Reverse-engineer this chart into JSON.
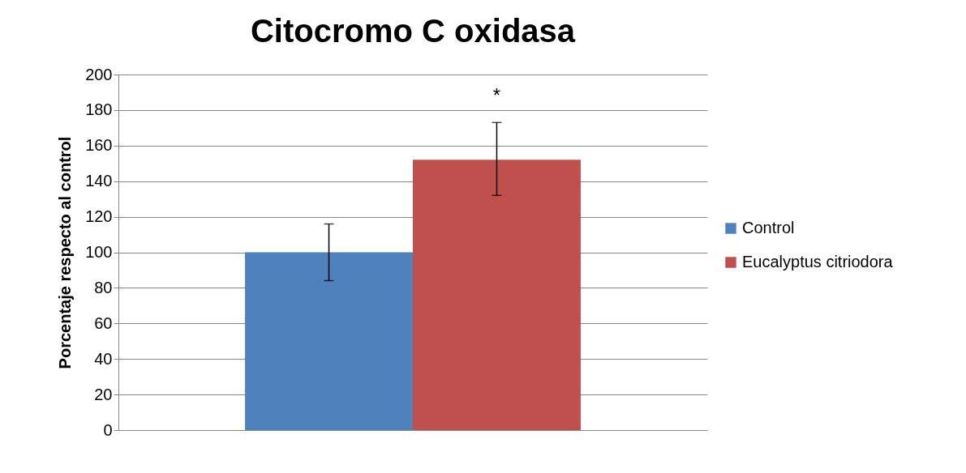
{
  "chart_data": {
    "type": "bar",
    "title": "Citocromo C oxidasa",
    "ylabel": "Porcentaje respecto al control",
    "categories": [
      null
    ],
    "series": [
      {
        "name": "Control",
        "color": "#4f81bd",
        "values": [
          100
        ],
        "errors": [
          [
            84,
            116
          ]
        ]
      },
      {
        "name": "Eucalyptus citriodora",
        "color": "#c0504d",
        "values": [
          152
        ],
        "errors": [
          [
            132,
            173
          ]
        ]
      }
    ],
    "ylim": [
      0,
      200
    ],
    "yticks": [
      0,
      20,
      40,
      60,
      80,
      100,
      120,
      140,
      160,
      180,
      200
    ],
    "grid": "y",
    "legend": "right",
    "annotations": [
      "*"
    ]
  }
}
